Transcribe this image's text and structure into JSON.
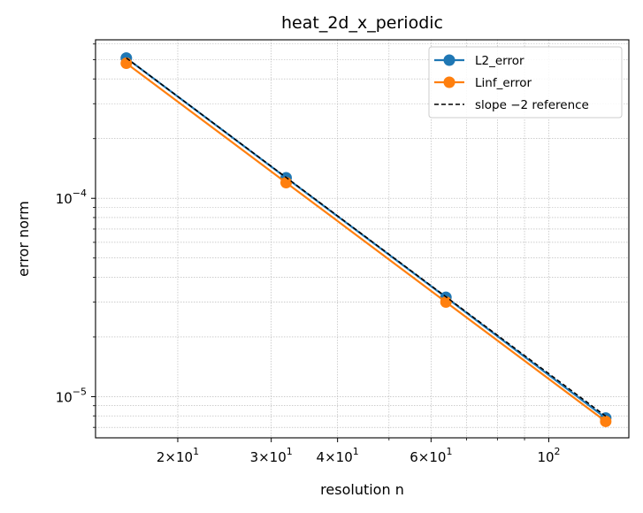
{
  "chart_data": {
    "type": "line",
    "title": "heat_2d_x_periodic",
    "xlabel": "resolution n",
    "ylabel": "error norm",
    "xscale": "log",
    "yscale": "log",
    "xlim": [
      14.0,
      141.5
    ],
    "ylim": [
      6.2e-06,
      0.00063
    ],
    "grid": true,
    "legend_position": "top-right",
    "x": [
      16,
      32,
      64,
      128
    ],
    "series": [
      {
        "name": "L2_error",
        "values": [
          0.00051,
          0.000127,
          3.17e-05,
          7.8e-06
        ],
        "color": "#1f77b4",
        "style": "solid",
        "marker": "circle"
      },
      {
        "name": "Linf_error",
        "values": [
          0.00048,
          0.00012,
          3e-05,
          7.5e-06
        ],
        "color": "#ff7f0e",
        "style": "solid",
        "marker": "circle"
      },
      {
        "name": "slope −2 reference",
        "values": [
          0.00051,
          0.0001275,
          3.19e-05,
          7.97e-06
        ],
        "color": "#000000",
        "style": "dashed",
        "marker": "none"
      }
    ],
    "xticks": [
      {
        "value": 20,
        "base": "2×10",
        "exp": "1"
      },
      {
        "value": 30,
        "base": "3×10",
        "exp": "1"
      },
      {
        "value": 40,
        "base": "4×10",
        "exp": "1"
      },
      {
        "value": 60,
        "base": "6×10",
        "exp": "1"
      },
      {
        "value": 100,
        "base": "10",
        "exp": "2"
      }
    ],
    "yticks": [
      {
        "value": 0.0001,
        "base": "10",
        "exp": "−4"
      },
      {
        "value": 1e-05,
        "base": "10",
        "exp": "−5"
      }
    ]
  }
}
